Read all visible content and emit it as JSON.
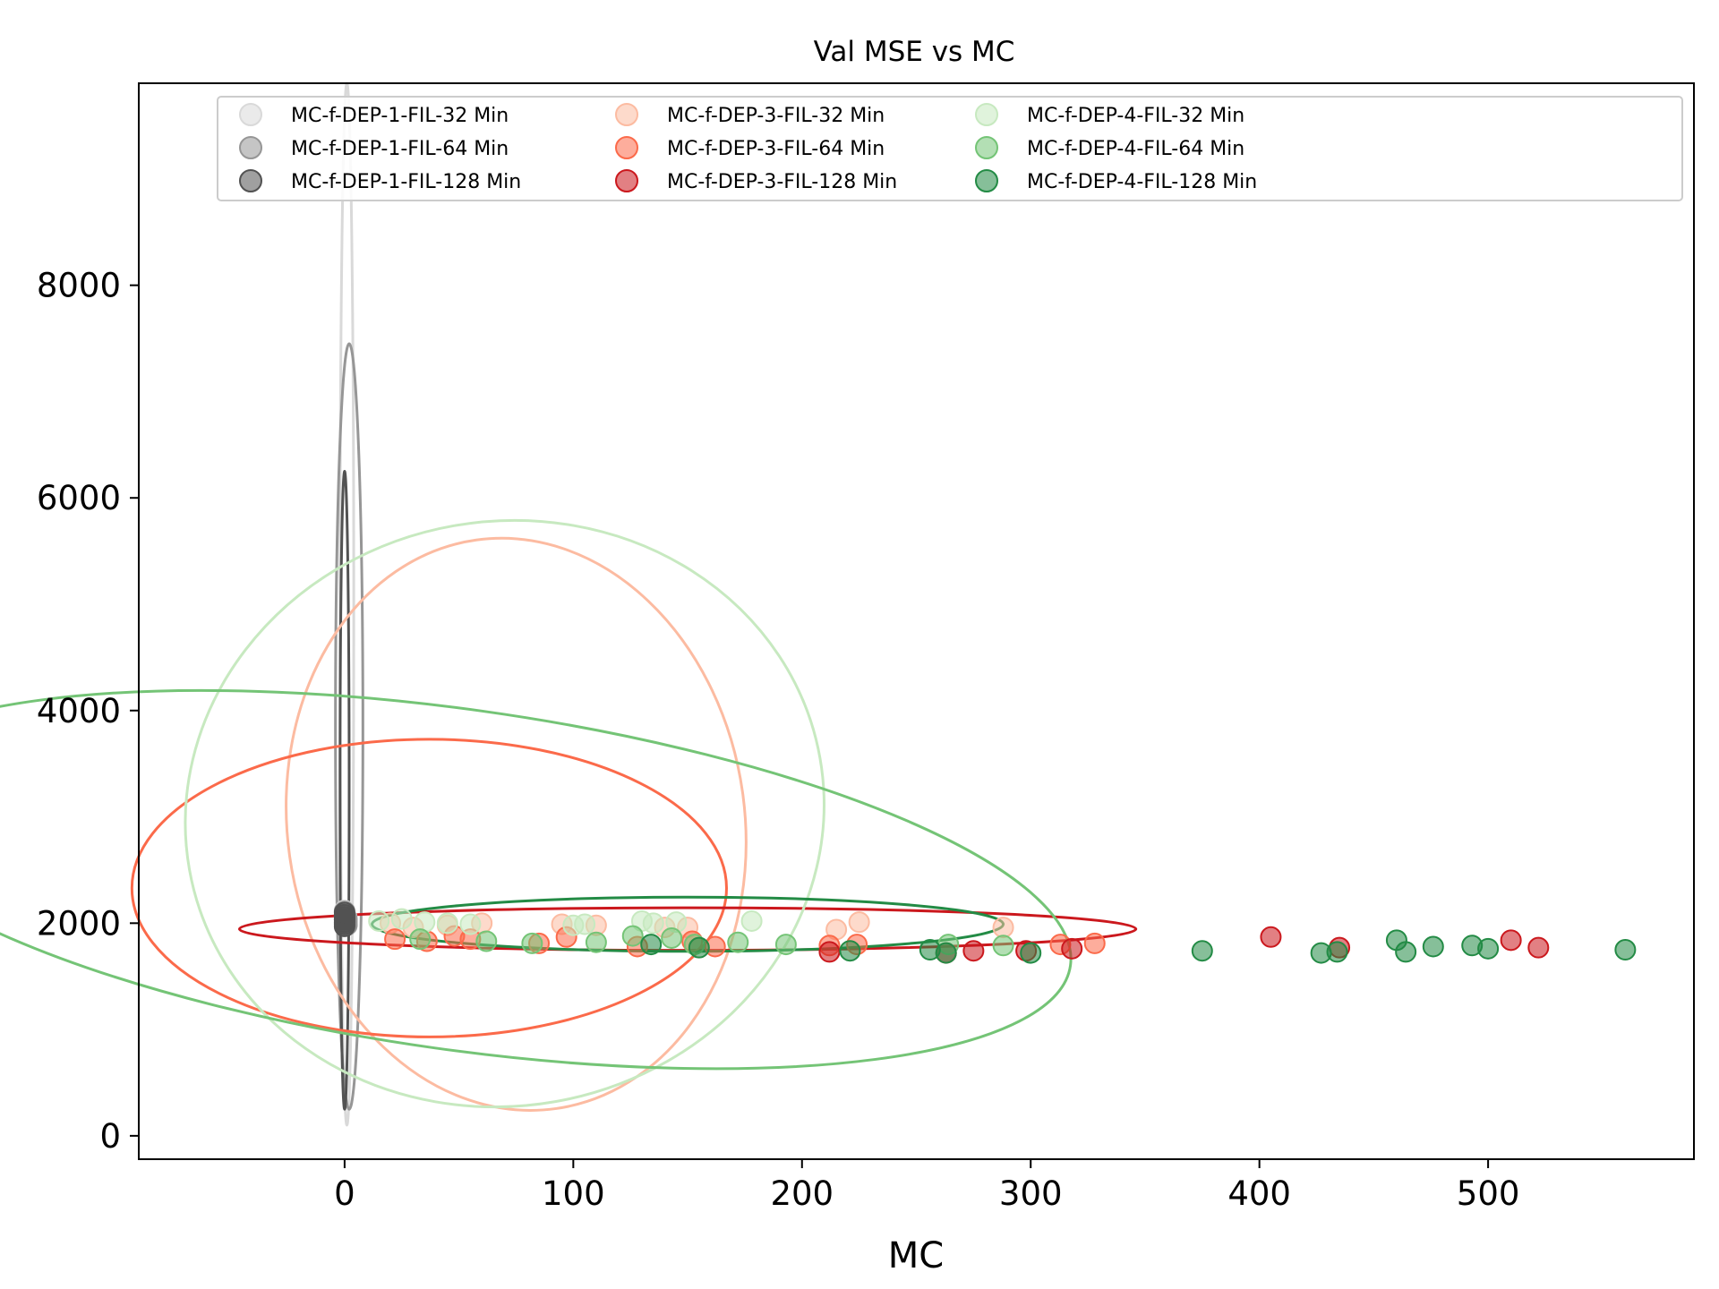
{
  "chart_data": {
    "type": "scatter",
    "title": "Val MSE vs MC",
    "xlabel": "MC",
    "ylabel": "",
    "xlim": [
      -90,
      590
    ],
    "ylim": [
      -220,
      9900
    ],
    "xticks": [
      0,
      100,
      200,
      300,
      400,
      500
    ],
    "yticks": [
      0,
      2000,
      4000,
      6000,
      8000
    ],
    "legend": {
      "placement": "top",
      "columns": 4
    },
    "series": [
      {
        "name": "MC-f-DEP-1-FIL-32 Min",
        "color": "#d9d9d9",
        "x": [
          0,
          0,
          1,
          1,
          0,
          1,
          0,
          1
        ],
        "y": [
          2010,
          2080,
          2050,
          1990,
          2120,
          2030,
          2060,
          2000
        ],
        "ellipse": {
          "cx": 1,
          "cy": 5000,
          "rx": 3,
          "ry": 4900
        }
      },
      {
        "name": "MC-f-DEP-1-FIL-64 Min",
        "color": "#969696",
        "x": [
          0,
          0,
          1,
          1,
          0,
          1,
          0,
          1
        ],
        "y": [
          2000,
          2070,
          2040,
          1980,
          2110,
          2020,
          2050,
          1990
        ],
        "ellipse": {
          "cx": 2,
          "cy": 3850,
          "rx": 6,
          "ry": 3600
        }
      },
      {
        "name": "MC-f-DEP-1-FIL-128 Min",
        "color": "#525252",
        "x": [
          0,
          0,
          0,
          0,
          0,
          0,
          0,
          0
        ],
        "y": [
          1990,
          2060,
          2030,
          1970,
          2100,
          2010,
          2040,
          2080
        ],
        "ellipse": {
          "cx": 0,
          "cy": 3250,
          "rx": 2,
          "ry": 3000
        }
      },
      {
        "name": "MC-f-DEP-3-FIL-32 Min",
        "color": "#fcbba1",
        "x": [
          20,
          30,
          45,
          60,
          95,
          110,
          140,
          150,
          215,
          225,
          288
        ],
        "y": [
          2000,
          1960,
          1980,
          2000,
          1990,
          1980,
          1960,
          1960,
          1940,
          2010,
          1960
        ],
        "ellipse": {
          "cx": 75,
          "cy": 2930,
          "rx": 100,
          "ry": 2700,
          "angle": -8
        }
      },
      {
        "name": "MC-f-DEP-3-FIL-64 Min",
        "color": "#fb6a4a",
        "x": [
          22,
          36,
          48,
          55,
          85,
          97,
          128,
          152,
          162,
          212,
          224,
          313,
          328
        ],
        "y": [
          1850,
          1830,
          1880,
          1850,
          1810,
          1870,
          1780,
          1830,
          1780,
          1790,
          1800,
          1800,
          1810
        ],
        "ellipse": {
          "cx": 37,
          "cy": 2330,
          "rx": 130,
          "ry": 1400
        }
      },
      {
        "name": "MC-f-DEP-3-FIL-128 Min",
        "color": "#cb181d",
        "x": [
          212,
          263,
          275,
          298,
          318,
          405,
          435,
          510,
          522
        ],
        "y": [
          1730,
          1720,
          1740,
          1740,
          1760,
          1870,
          1770,
          1840,
          1770
        ],
        "ellipse": {
          "cx": 150,
          "cy": 1945,
          "rx": 196,
          "ry": 200
        }
      },
      {
        "name": "MC-f-DEP-4-FIL-32 Min",
        "color": "#c7e9c0",
        "x": [
          15,
          25,
          35,
          45,
          55,
          100,
          105,
          130,
          135,
          145,
          178
        ],
        "y": [
          2020,
          2040,
          2010,
          2000,
          1990,
          1980,
          1990,
          2020,
          2000,
          2010,
          2020
        ],
        "ellipse": {
          "cx": 70,
          "cy": 3030,
          "rx": 140,
          "ry": 2750,
          "angle": -10
        }
      },
      {
        "name": "MC-f-DEP-4-FIL-64 Min",
        "color": "#74c476",
        "x": [
          33,
          62,
          82,
          110,
          126,
          143,
          153,
          172,
          193,
          264,
          288
        ],
        "y": [
          1850,
          1830,
          1810,
          1820,
          1880,
          1860,
          1800,
          1820,
          1800,
          1800,
          1790
        ],
        "ellipse": {
          "cx": 50,
          "cy": 2410,
          "rx": 270,
          "ry": 1600,
          "angle": 8
        }
      },
      {
        "name": "MC-f-DEP-4-FIL-128 Min",
        "color": "#238b45",
        "x": [
          134,
          155,
          221,
          256,
          263,
          300,
          375,
          427,
          434,
          460,
          464,
          476,
          493,
          500,
          560
        ],
        "y": [
          1800,
          1770,
          1740,
          1750,
          1720,
          1720,
          1740,
          1720,
          1730,
          1840,
          1730,
          1780,
          1790,
          1760,
          1750
        ],
        "ellipse": {
          "cx": 150,
          "cy": 1990,
          "rx": 138,
          "ry": 255
        }
      }
    ]
  }
}
